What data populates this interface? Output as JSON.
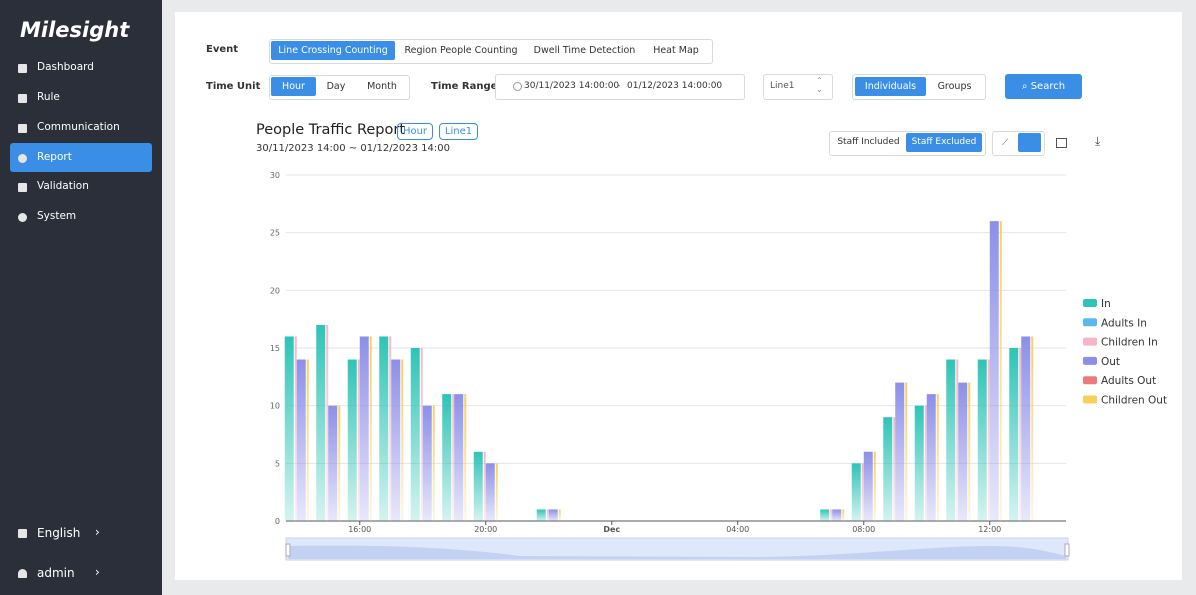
{
  "sidebar": {
    "logo": "Milesight",
    "menu": [
      "Dashboard",
      "Rule",
      "Communication",
      "Report",
      "Validation",
      "System"
    ],
    "language": "English",
    "user": "admin"
  },
  "filters": {
    "event_label": "Event",
    "event_tabs": [
      "Line Crossing Counting",
      "Region People Counting",
      "Dwell Time Detection",
      "Heat Map"
    ],
    "time_unit_label": "Time Unit",
    "time_units": [
      "Hour",
      "Day",
      "Month"
    ],
    "time_range_label": "Time Range",
    "range_start": "30/11/2023 14:00:00",
    "range_sep": "-",
    "range_end": "01/12/2023 14:00:00",
    "line": "Line1",
    "modes": [
      "Individuals",
      "Groups"
    ],
    "search": "Search"
  },
  "report": {
    "tags": [
      "Hour",
      "Line1"
    ],
    "staff_options": [
      "Staff Included",
      "Staff Excluded"
    ]
  },
  "chart_data": {
    "type": "bar",
    "title": "People Traffic Report",
    "subtitle": "30/11/2023 14:00 ~ 01/12/2023 14:00",
    "categories": [
      null,
      null,
      "16:00",
      null,
      null,
      null,
      "20:00",
      null,
      null,
      null,
      "Dec",
      null,
      null,
      null,
      "04:00",
      null,
      null,
      null,
      "08:00",
      null,
      null,
      null,
      "12:00",
      null
    ],
    "series": [
      {
        "name": "In",
        "color": "#2ec4b6",
        "values": [
          16,
          17,
          14,
          16,
          15,
          11,
          6,
          0,
          1,
          0,
          0,
          0,
          0,
          0,
          0,
          0,
          0,
          1,
          5,
          9,
          10,
          14,
          14,
          15
        ]
      },
      {
        "name": "Adults In",
        "color": "#5ab8ee",
        "values": [
          0,
          0,
          0,
          0,
          0,
          0,
          0,
          0,
          0,
          0,
          0,
          0,
          0,
          0,
          0,
          0,
          0,
          0,
          0,
          0,
          0,
          0,
          0,
          0
        ]
      },
      {
        "name": "Children In",
        "color": "#f7b6c8",
        "values": [
          16,
          17,
          14,
          16,
          15,
          11,
          6,
          0,
          1,
          0,
          0,
          0,
          0,
          0,
          0,
          0,
          0,
          1,
          5,
          9,
          10,
          14,
          14,
          15
        ]
      },
      {
        "name": "Out",
        "color": "#8c8fe8",
        "values": [
          14,
          10,
          16,
          14,
          10,
          11,
          5,
          0,
          1,
          0,
          0,
          0,
          0,
          0,
          0,
          0,
          0,
          1,
          6,
          12,
          11,
          12,
          26,
          16
        ]
      },
      {
        "name": "Adults Out",
        "color": "#ea7b7b",
        "values": [
          0,
          0,
          0,
          0,
          0,
          0,
          0,
          0,
          0,
          0,
          0,
          0,
          0,
          0,
          0,
          0,
          0,
          0,
          0,
          0,
          0,
          0,
          0,
          0
        ]
      },
      {
        "name": "Children Out",
        "color": "#f8cf5a",
        "values": [
          14,
          10,
          16,
          14,
          10,
          11,
          5,
          0,
          1,
          0,
          0,
          0,
          0,
          0,
          0,
          0,
          0,
          1,
          6,
          12,
          11,
          12,
          26,
          16
        ]
      }
    ],
    "ylim": [
      0,
      30
    ],
    "yticks": [
      0,
      5,
      10,
      15,
      20,
      25,
      30
    ],
    "grid": true,
    "legend": "right"
  }
}
